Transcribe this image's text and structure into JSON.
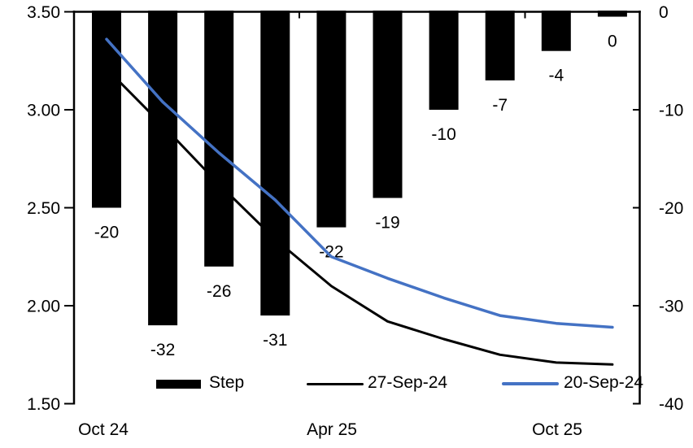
{
  "chart_data": {
    "type": "combo-bar-line",
    "title": "",
    "left_axis": {
      "min": 1.5,
      "max": 3.5,
      "tick_values": [
        3.5,
        3.0,
        2.5,
        2.0,
        1.5
      ],
      "tick_labels": [
        "3.50",
        "3.00",
        "2.50",
        "2.00",
        "1.50"
      ]
    },
    "right_axis": {
      "min": -40,
      "max": 0,
      "tick_values": [
        0,
        -10,
        -20,
        -30,
        -40
      ],
      "tick_labels": [
        "0",
        "-10",
        "-20",
        "-30",
        "-40"
      ]
    },
    "x_labels": [
      "Oct 24",
      "Apr 25",
      "Oct 25"
    ],
    "categories_count": 10,
    "bars": {
      "name": "Step",
      "axis": "right",
      "color": "#000000",
      "values": [
        -20,
        -32,
        -26,
        -31,
        -22,
        -19,
        -10,
        -7,
        -4,
        -0.5
      ],
      "labels": [
        "-20",
        "-32",
        "-26",
        "-31",
        "-22",
        "-19",
        "-10",
        "-7",
        "-4",
        "0"
      ]
    },
    "lines": [
      {
        "name": "27-Sep-24",
        "axis": "left",
        "color": "#000000",
        "width": 3,
        "values": [
          3.21,
          2.92,
          2.62,
          2.34,
          2.1,
          1.92,
          1.83,
          1.75,
          1.71,
          1.7
        ]
      },
      {
        "name": "20-Sep-24",
        "axis": "left",
        "color": "#4472C4",
        "width": 3.5,
        "values": [
          3.36,
          3.04,
          2.78,
          2.54,
          2.25,
          2.14,
          2.04,
          1.95,
          1.91,
          1.89
        ]
      }
    ],
    "legend_position": "bottom-inside"
  }
}
